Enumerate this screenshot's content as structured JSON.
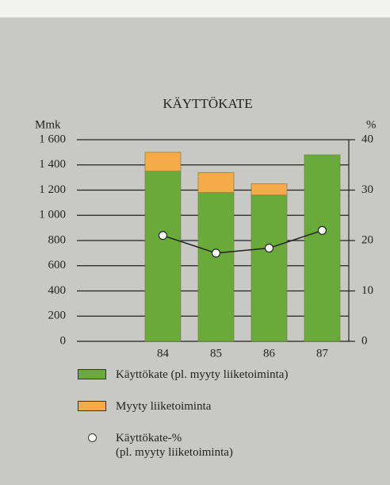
{
  "chart_data": {
    "type": "bar",
    "title": "KÄYTTÖKATE",
    "y_label": "Mmk",
    "y2_label": "%",
    "categories": [
      "84",
      "85",
      "86",
      "87"
    ],
    "series": [
      {
        "name": "Käyttökate (pl. myyty liiketoiminta)",
        "color": "#6aaa3a",
        "type": "bar",
        "values": [
          1350,
          1180,
          1160,
          1480
        ]
      },
      {
        "name": "Myyty liiketoiminta",
        "color": "#f6aa4a",
        "type": "bar",
        "values": [
          150,
          160,
          90,
          null
        ]
      },
      {
        "name": "Käyttökate-%\n(pl. myyty liiketoiminta)",
        "color": "#ffffff",
        "type": "line",
        "axis": "y2",
        "values": [
          21,
          17.5,
          18.5,
          22
        ]
      }
    ],
    "stacked": true,
    "ylim": [
      0,
      1600
    ],
    "yticks": [
      0,
      200,
      400,
      600,
      800,
      {
        "value": 1000,
        "label": "1 000"
      },
      {
        "value": 1200,
        "label": "1 200"
      },
      {
        "value": 1400,
        "label": "1 400"
      },
      {
        "value": 1600,
        "label": "1 600"
      }
    ],
    "y2lim": [
      0,
      40
    ],
    "y2ticks": [
      0,
      10,
      20,
      30,
      40
    ],
    "grid": true
  }
}
